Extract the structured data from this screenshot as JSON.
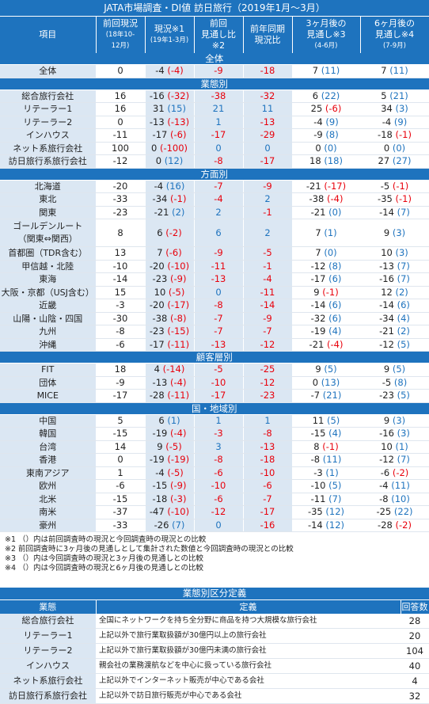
{
  "title": "JATA市場調査・DI値 訪日旅行（2019年1月～3月）",
  "headers": {
    "item": "項目",
    "prev_line1": "前回現況",
    "prev_line2": "(18年10-",
    "prev_line3": "12月)",
    "cur_line1": "現況※1",
    "cur_line2": "(19年1-3月)",
    "cmp_line1": "前回",
    "cmp_line2": "見通し比",
    "cmp_line3": "※2",
    "yoy_line1": "前年同期",
    "yoy_line2": "現況比",
    "m3_line1": "3ヶ月後の",
    "m3_line2": "見通し※3",
    "m3_line3": "(4-6月)",
    "m6_line1": "6ヶ月後の",
    "m6_line2": "見通し※4",
    "m6_line3": "(7-9月)"
  },
  "sections": [
    {
      "name": "全体",
      "rows": [
        {
          "label": "全体",
          "prev": "0",
          "cur": "-4",
          "cur_diff": "(-4)",
          "cmp": "-9",
          "yoy": "-18",
          "m3": "7",
          "m3_diff": "(11)",
          "m6": "7",
          "m6_diff": "(11)"
        }
      ]
    },
    {
      "name": "業態別",
      "rows": [
        {
          "label": "総合旅行会社",
          "prev": "16",
          "cur": "-16",
          "cur_diff": "(-32)",
          "cmp": "-38",
          "yoy": "-32",
          "m3": "6",
          "m3_diff": "(22)",
          "m6": "5",
          "m6_diff": "(21)"
        },
        {
          "label": "リテーラー1",
          "prev": "16",
          "cur": "31",
          "cur_diff": "(15)",
          "cmp": "21",
          "yoy": "11",
          "m3": "25",
          "m3_diff": "(-6)",
          "m6": "34",
          "m6_diff": "(3)"
        },
        {
          "label": "リテーラー2",
          "prev": "0",
          "cur": "-13",
          "cur_diff": "(-13)",
          "cmp": "1",
          "yoy": "-13",
          "m3": "-4",
          "m3_diff": "(9)",
          "m6": "-4",
          "m6_diff": "(9)"
        },
        {
          "label": "インハウス",
          "prev": "-11",
          "cur": "-17",
          "cur_diff": "(-6)",
          "cmp": "-17",
          "yoy": "-29",
          "m3": "-9",
          "m3_diff": "(8)",
          "m6": "-18",
          "m6_diff": "(-1)"
        },
        {
          "label": "ネット系旅行会社",
          "prev": "100",
          "cur": "0",
          "cur_diff": "(-100)",
          "cmp": "0",
          "yoy": "0",
          "m3": "0",
          "m3_diff": "(0)",
          "m6": "0",
          "m6_diff": "(0)"
        },
        {
          "label": "訪日旅行系旅行会社",
          "prev": "-12",
          "cur": "0",
          "cur_diff": "(12)",
          "cmp": "-8",
          "yoy": "-17",
          "m3": "18",
          "m3_diff": "(18)",
          "m6": "27",
          "m6_diff": "(27)"
        }
      ]
    },
    {
      "name": "方面別",
      "rows": [
        {
          "label": "北海道",
          "prev": "-20",
          "cur": "-4",
          "cur_diff": "(16)",
          "cmp": "-7",
          "yoy": "-9",
          "m3": "-21",
          "m3_diff": "(-17)",
          "m6": "-5",
          "m6_diff": "(-1)"
        },
        {
          "label": "東北",
          "prev": "-33",
          "cur": "-34",
          "cur_diff": "(-1)",
          "cmp": "-4",
          "yoy": "2",
          "m3": "-38",
          "m3_diff": "(-4)",
          "m6": "-35",
          "m6_diff": "(-1)"
        },
        {
          "label": "関東",
          "prev": "-23",
          "cur": "-21",
          "cur_diff": "(2)",
          "cmp": "2",
          "yoy": "-1",
          "m3": "-21",
          "m3_diff": "(0)",
          "m6": "-14",
          "m6_diff": "(7)"
        },
        {
          "label": "ゴールデンルート",
          "label2": "（関東⇔関西）",
          "tall": true,
          "prev": "8",
          "cur": "6",
          "cur_diff": "(-2)",
          "cmp": "6",
          "yoy": "2",
          "m3": "7",
          "m3_diff": "(1)",
          "m6": "9",
          "m6_diff": "(3)"
        },
        {
          "label": "首都圏（TDR含む）",
          "prev": "13",
          "cur": "7",
          "cur_diff": "(-6)",
          "cmp": "-9",
          "yoy": "-5",
          "m3": "7",
          "m3_diff": "(0)",
          "m6": "10",
          "m6_diff": "(3)"
        },
        {
          "label": "甲信越・北陸",
          "prev": "-10",
          "cur": "-20",
          "cur_diff": "(-10)",
          "cmp": "-11",
          "yoy": "-1",
          "m3": "-12",
          "m3_diff": "(8)",
          "m6": "-13",
          "m6_diff": "(7)"
        },
        {
          "label": "東海",
          "prev": "-14",
          "cur": "-23",
          "cur_diff": "(-9)",
          "cmp": "-13",
          "yoy": "-4",
          "m3": "-17",
          "m3_diff": "(6)",
          "m6": "-16",
          "m6_diff": "(7)"
        },
        {
          "label": "大阪・京都（USJ含む）",
          "prev": "15",
          "cur": "10",
          "cur_diff": "(-5)",
          "cmp": "0",
          "yoy": "-11",
          "m3": "9",
          "m3_diff": "(-1)",
          "m6": "12",
          "m6_diff": "(2)"
        },
        {
          "label": "近畿",
          "prev": "-3",
          "cur": "-20",
          "cur_diff": "(-17)",
          "cmp": "-8",
          "yoy": "-14",
          "m3": "-14",
          "m3_diff": "(6)",
          "m6": "-14",
          "m6_diff": "(6)"
        },
        {
          "label": "山陽・山陰・四国",
          "prev": "-30",
          "cur": "-38",
          "cur_diff": "(-8)",
          "cmp": "-7",
          "yoy": "-9",
          "m3": "-32",
          "m3_diff": "(6)",
          "m6": "-34",
          "m6_diff": "(4)"
        },
        {
          "label": "九州",
          "prev": "-8",
          "cur": "-23",
          "cur_diff": "(-15)",
          "cmp": "-7",
          "yoy": "-7",
          "m3": "-19",
          "m3_diff": "(4)",
          "m6": "-21",
          "m6_diff": "(2)"
        },
        {
          "label": "沖縄",
          "prev": "-6",
          "cur": "-17",
          "cur_diff": "(-11)",
          "cmp": "-13",
          "yoy": "-12",
          "m3": "-21",
          "m3_diff": "(-4)",
          "m6": "-12",
          "m6_diff": "(5)"
        }
      ]
    },
    {
      "name": "顧客層別",
      "rows": [
        {
          "label": "FIT",
          "prev": "18",
          "cur": "4",
          "cur_diff": "(-14)",
          "cmp": "-5",
          "yoy": "-25",
          "m3": "9",
          "m3_diff": "(5)",
          "m6": "9",
          "m6_diff": "(5)"
        },
        {
          "label": "団体",
          "prev": "-9",
          "cur": "-13",
          "cur_diff": "(-4)",
          "cmp": "-10",
          "yoy": "-12",
          "m3": "0",
          "m3_diff": "(13)",
          "m6": "-5",
          "m6_diff": "(8)"
        },
        {
          "label": "MICE",
          "prev": "-17",
          "cur": "-28",
          "cur_diff": "(-11)",
          "cmp": "-17",
          "yoy": "-23",
          "m3": "-7",
          "m3_diff": "(21)",
          "m6": "-23",
          "m6_diff": "(5)"
        }
      ]
    },
    {
      "name": "国・地域別",
      "rows": [
        {
          "label": "中国",
          "prev": "5",
          "cur": "6",
          "cur_diff": "(1)",
          "cmp": "1",
          "yoy": "1",
          "m3": "11",
          "m3_diff": "(5)",
          "m6": "9",
          "m6_diff": "(3)"
        },
        {
          "label": "韓国",
          "prev": "-15",
          "cur": "-19",
          "cur_diff": "(-4)",
          "cmp": "-3",
          "yoy": "-8",
          "m3": "-15",
          "m3_diff": "(4)",
          "m6": "-16",
          "m6_diff": "(3)"
        },
        {
          "label": "台湾",
          "prev": "14",
          "cur": "9",
          "cur_diff": "(-5)",
          "cmp": "3",
          "yoy": "-13",
          "m3": "8",
          "m3_diff": "(-1)",
          "m6": "10",
          "m6_diff": "(1)"
        },
        {
          "label": "香港",
          "prev": "0",
          "cur": "-19",
          "cur_diff": "(-19)",
          "cmp": "-8",
          "yoy": "-18",
          "m3": "-8",
          "m3_diff": "(11)",
          "m6": "-12",
          "m6_diff": "(7)"
        },
        {
          "label": "東南アジア",
          "prev": "1",
          "cur": "-4",
          "cur_diff": "(-5)",
          "cmp": "-6",
          "yoy": "-10",
          "m3": "-3",
          "m3_diff": "(1)",
          "m6": "-6",
          "m6_diff": "(-2)"
        },
        {
          "label": "欧州",
          "prev": "-6",
          "cur": "-15",
          "cur_diff": "(-9)",
          "cmp": "-10",
          "yoy": "-6",
          "m3": "-10",
          "m3_diff": "(5)",
          "m6": "-4",
          "m6_diff": "(11)"
        },
        {
          "label": "北米",
          "prev": "-15",
          "cur": "-18",
          "cur_diff": "(-3)",
          "cmp": "-6",
          "yoy": "-7",
          "m3": "-11",
          "m3_diff": "(7)",
          "m6": "-8",
          "m6_diff": "(10)"
        },
        {
          "label": "南米",
          "prev": "-37",
          "cur": "-47",
          "cur_diff": "(-10)",
          "cmp": "-12",
          "yoy": "-17",
          "m3": "-35",
          "m3_diff": "(12)",
          "m6": "-25",
          "m6_diff": "(22)"
        },
        {
          "label": "豪州",
          "prev": "-33",
          "cur": "-26",
          "cur_diff": "(7)",
          "cmp": "0",
          "yoy": "-16",
          "m3": "-14",
          "m3_diff": "(12)",
          "m6": "-28",
          "m6_diff": "(-2)"
        }
      ]
    }
  ],
  "notes": [
    "※1 （）内は前回調査時の現況と今回調査時の現況との比較",
    "※2 前回調査時に3ヶ月後の見通しとして集計された数値と今回調査時の現況との比較",
    "※3 （）内は今回調査時の現況と3ヶ月後の見通しとの比較",
    "※4 （）内は今回調査時の現況と6ヶ月後の見通しとの比較"
  ],
  "definitions": {
    "title": "業態別区分定義",
    "headers": {
      "type": "業態",
      "definition": "定義",
      "responses": "回答数"
    },
    "rows": [
      {
        "type": "総合旅行会社",
        "definition": "全国にネットワークを持ち全分野に商品を持つ大規模な旅行会社",
        "responses": "28"
      },
      {
        "type": "リテーラー1",
        "definition": "上記以外で旅行業取扱額が30億円以上の旅行会社",
        "responses": "20"
      },
      {
        "type": "リテーラー2",
        "definition": "上記以外で旅行業取扱額が30億円未満の旅行会社",
        "responses": "104"
      },
      {
        "type": "インハウス",
        "definition": "親会社の業務渡航などを中心に扱っている旅行会社",
        "responses": "40"
      },
      {
        "type": "ネット系旅行会社",
        "definition": "上記以外でインターネット販売が中心である会社",
        "responses": "4"
      },
      {
        "type": "訪日旅行系旅行会社",
        "definition": "上記以外で訪日旅行販売が中心である会社",
        "responses": "32"
      }
    ]
  },
  "colors": {
    "header_blue": "#1e73be",
    "label_bg": "#dbe7f3",
    "negative_red": "#e8000b",
    "positive_blue": "#1e73be"
  }
}
